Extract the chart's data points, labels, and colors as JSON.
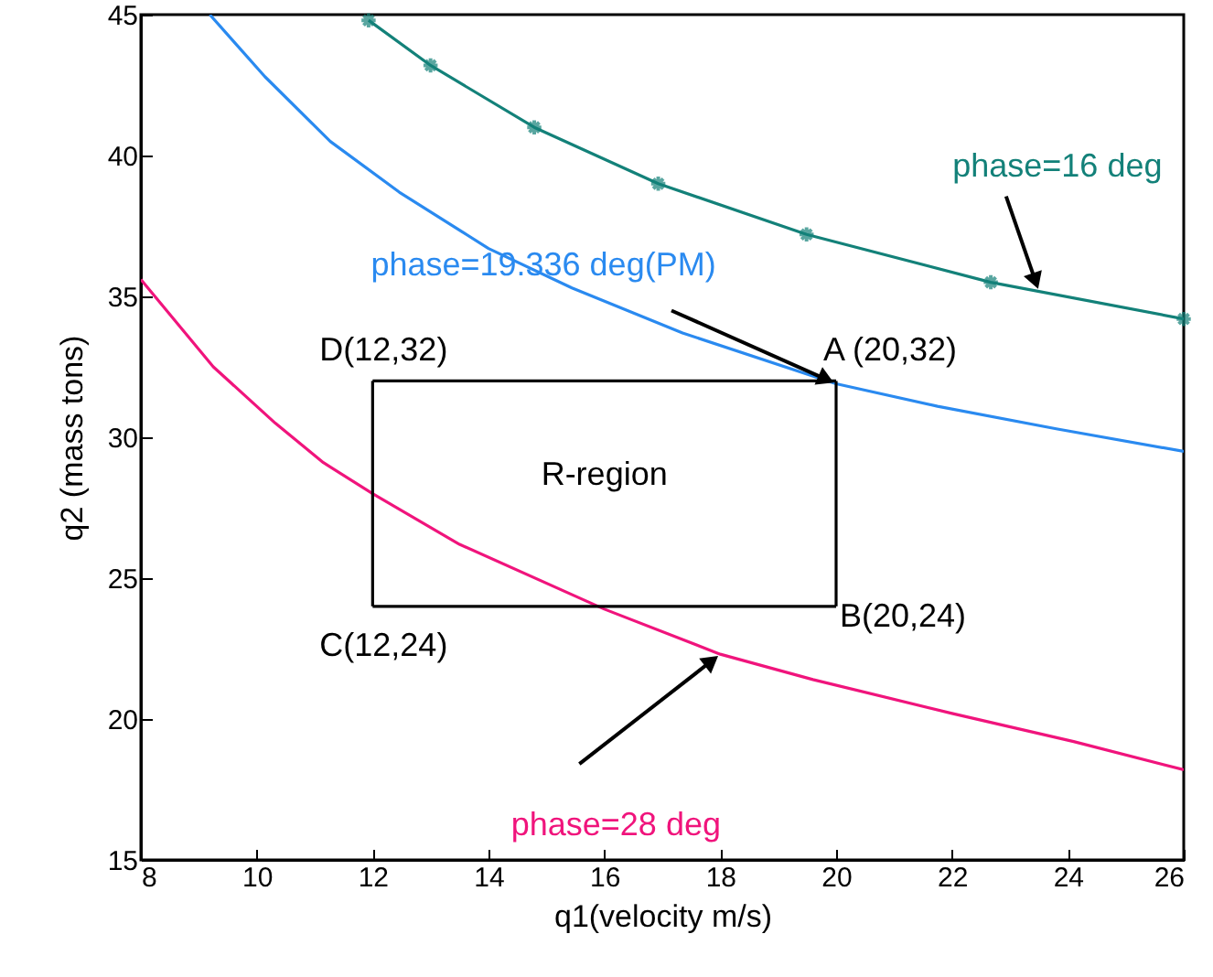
{
  "chart_data": {
    "type": "line",
    "xlabel": "q1(velocity m/s)",
    "ylabel": "q2 (mass tons)",
    "xlim": [
      8,
      26
    ],
    "xticks": [
      8,
      10,
      12,
      14,
      16,
      18,
      20,
      22,
      24,
      26
    ],
    "ylim": [
      15,
      45
    ],
    "yticks": [
      15,
      20,
      25,
      30,
      35,
      40,
      45
    ],
    "grid": false,
    "line_style": "solid",
    "series": [
      {
        "name": "phase=16 deg",
        "color": "#138179",
        "marker": "cross",
        "x": [
          11.93,
          13,
          14.79,
          16.93,
          19.49,
          22.67,
          26
        ],
        "values": [
          44.8,
          43.2,
          41.0,
          39.0,
          37.2,
          35.5,
          34.2
        ]
      },
      {
        "name": "phase=19.336 deg(PM)",
        "color": "#2a8af0",
        "marker": "none",
        "x": [
          9.19,
          10.14,
          11.27,
          12.46,
          14.0,
          15.44,
          17.35,
          20.0,
          21.75,
          23.8,
          26
        ],
        "values": [
          45,
          42.8,
          40.5,
          38.7,
          36.7,
          35.3,
          33.7,
          31.9,
          31.1,
          30.3,
          29.5
        ]
      },
      {
        "name": "phase=28 deg",
        "color": "#f0147c",
        "marker": "none",
        "x": [
          8,
          9.25,
          10.32,
          11.15,
          12.0,
          13.5,
          16.0,
          18.0,
          19.6,
          22.0,
          24.1,
          26
        ],
        "values": [
          35.6,
          32.5,
          30.5,
          29.1,
          28.0,
          26.2,
          23.9,
          22.3,
          21.4,
          20.2,
          19.2,
          18.2
        ]
      },
      {
        "color": "#000000",
        "x": [
          12,
          20
        ],
        "values": [
          32,
          32
        ]
      },
      {
        "color": "#000000",
        "x": [
          12,
          20
        ],
        "values": [
          24,
          24
        ]
      },
      {
        "color": "#000000",
        "x": [
          12,
          12
        ],
        "values": [
          24,
          32
        ]
      },
      {
        "color": "#000000",
        "x": [
          20,
          20
        ],
        "values": [
          24,
          32
        ]
      }
    ],
    "annotations": [
      "R-region",
      "D(12,32)",
      "A (20,32)",
      "B(20,24)",
      "C(12,24)"
    ]
  }
}
